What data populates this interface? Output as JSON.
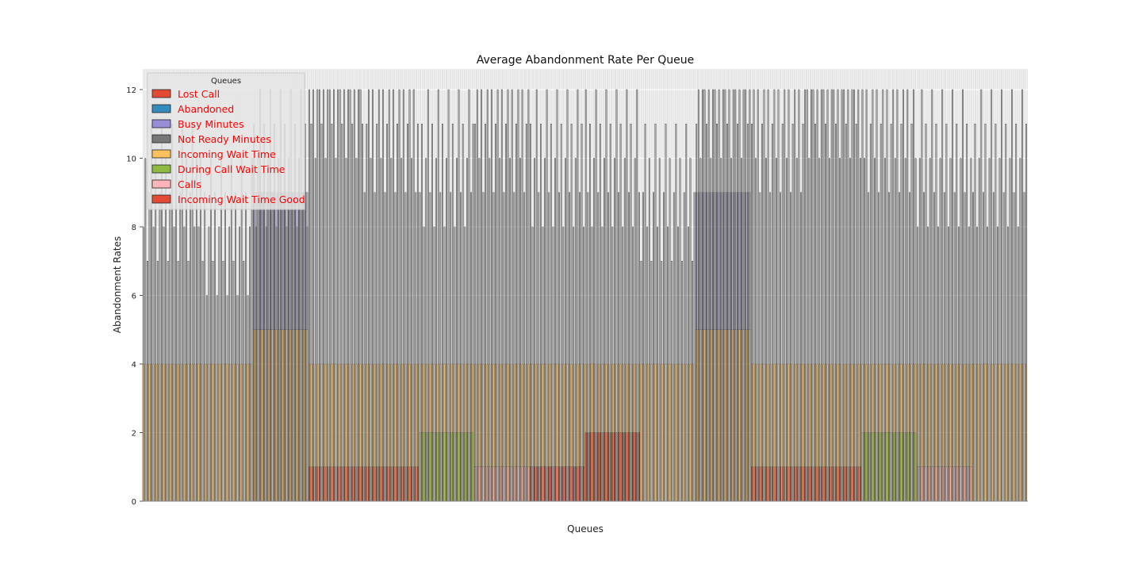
{
  "chart_data": {
    "type": "bar",
    "stacked": false,
    "title": "Average Abandonment Rate Per Queue",
    "xlabel": "Queues",
    "ylabel": "Abandonment Rates",
    "ylim": [
      0,
      12.6
    ],
    "yticks": [
      0,
      2,
      4,
      6,
      8,
      10,
      12
    ],
    "grid": true,
    "legend": {
      "title": "Queues",
      "placement": "upper-left"
    },
    "note": "Hundreds of densely packed, overlapping category bars; values below are a coarse piecewise approximation of visible levels.",
    "segments": 16,
    "series": [
      {
        "name": "Lost Call",
        "color": "#E24A33",
        "values": [
          0,
          0,
          0,
          0,
          0,
          0,
          0,
          0,
          2,
          0,
          0,
          0,
          0,
          0,
          0,
          0
        ]
      },
      {
        "name": "Abandoned",
        "color": "#348ABD",
        "values": [
          0,
          0,
          0,
          0,
          0,
          0,
          0,
          0,
          0,
          0,
          0,
          0,
          0,
          0,
          0,
          0
        ]
      },
      {
        "name": "Busy Minutes",
        "color": "#988ED5",
        "values": [
          0,
          0,
          9,
          0,
          0,
          0,
          0,
          0,
          0,
          0,
          9,
          0,
          0,
          0,
          0,
          0
        ]
      },
      {
        "name": "Not Ready Minutes",
        "color": "#777777",
        "values": [
          9,
          8,
          10,
          12,
          11,
          10,
          11,
          10,
          10,
          9,
          12,
          11,
          12,
          11,
          10,
          10
        ]
      },
      {
        "name": "Incoming Wait Time",
        "color": "#FBC15E",
        "values": [
          4,
          4,
          5,
          4,
          4,
          4,
          4,
          4,
          4,
          4,
          5,
          4,
          4,
          4,
          4,
          4
        ]
      },
      {
        "name": "During Call Wait Time",
        "color": "#8EBA42",
        "values": [
          0,
          0,
          0,
          0,
          0,
          2,
          0,
          0,
          0,
          0,
          0,
          0,
          0,
          2,
          0,
          0
        ]
      },
      {
        "name": "Calls",
        "color": "#FFB5B8",
        "values": [
          0,
          0,
          0,
          0,
          0,
          0,
          1,
          1,
          0,
          0,
          0,
          0,
          0,
          0,
          1,
          0
        ]
      },
      {
        "name": "Incoming Wait Time Good",
        "color": "#E24A33",
        "values": [
          0,
          0,
          0,
          1,
          1,
          0,
          0,
          1,
          2,
          0,
          0,
          1,
          1,
          0,
          0,
          0
        ]
      }
    ]
  }
}
